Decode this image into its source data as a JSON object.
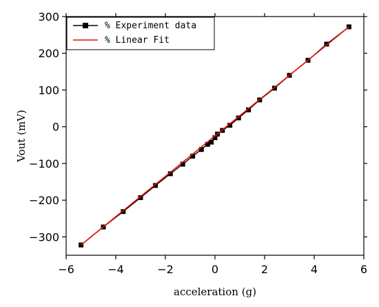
{
  "chart_data": {
    "type": "scatter",
    "title": "",
    "xlabel": "acceleration (g)",
    "ylabel": "Vout (mV)",
    "xlim": [
      -6,
      6
    ],
    "ylim": [
      -350,
      300
    ],
    "xticks": [
      -6,
      -4,
      -2,
      0,
      2,
      4,
      6
    ],
    "yticks": [
      -300,
      -200,
      -100,
      0,
      100,
      200,
      300
    ],
    "xtick_labels": [
      "−6",
      "−4",
      "−2",
      "0",
      "2",
      "4",
      "6"
    ],
    "ytick_labels": [
      "−300",
      "−200",
      "−100",
      "0",
      "100",
      "200",
      "300"
    ],
    "legend_position": "top-left",
    "series": [
      {
        "name": "% Experiment data",
        "color": "#000000",
        "marker": "square",
        "x": [
          -5.4,
          -4.5,
          -3.7,
          -3.0,
          -2.4,
          -1.8,
          -1.3,
          -0.9,
          -0.55,
          -0.3,
          -0.15,
          0.0,
          0.1,
          0.3,
          0.6,
          0.95,
          1.35,
          1.8,
          2.4,
          3.0,
          3.75,
          4.5,
          5.4
        ],
        "y": [
          -322,
          -273,
          -231,
          -193,
          -160,
          -128,
          -102,
          -80,
          -62,
          -48,
          -42,
          -30,
          -20,
          -10,
          4,
          24,
          46,
          73,
          105,
          140,
          181,
          225,
          272
        ]
      },
      {
        "name": "% Linear Fit",
        "color": "#e3120b",
        "type": "line",
        "x": [
          -5.4,
          5.4
        ],
        "y": [
          -322,
          272
        ]
      }
    ]
  }
}
